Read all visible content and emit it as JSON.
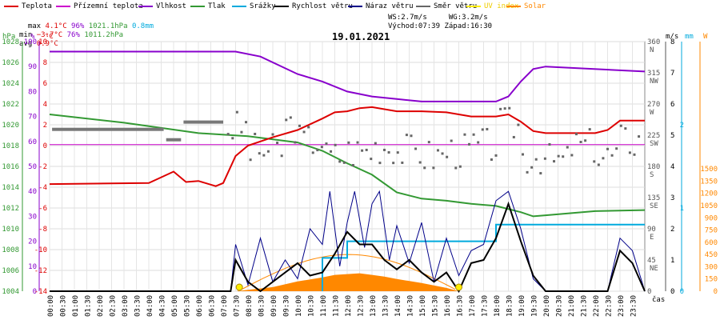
{
  "legend": [
    {
      "label": "Teplota",
      "color": "#dd0000"
    },
    {
      "label": "Přízemní teplota",
      "color": "#cc00cc"
    },
    {
      "label": "Vlhkost",
      "color": "#8800cc"
    },
    {
      "label": "Tlak",
      "color": "#339933"
    },
    {
      "label": "Srážky",
      "color": "#00aadd"
    },
    {
      "label": "Rychlost větru",
      "color": "#000000"
    },
    {
      "label": "Náraz větru",
      "color": "#000088"
    },
    {
      "label": "Směr větru",
      "color": "#666666"
    },
    {
      "label": "UV index",
      "color": "#ffee00"
    },
    {
      "label": "Solar",
      "color": "#ff8800"
    }
  ],
  "stats": {
    "max": {
      "label": "max",
      "temp": "4.1°C",
      "hum": "96%",
      "press": "1021.1hPa",
      "rain": "0.8mm"
    },
    "min": {
      "label": "min",
      "temp": "−3.7°C",
      "hum": "76%",
      "press": "1011.2hPa"
    },
    "avg": {
      "label": "avg",
      "temp": "0.9°C"
    }
  },
  "wind": {
    "ws": "WS:2.7m/s",
    "wg": "WG:3.2m/s",
    "sunrise": "Východ:07:39",
    "sunset": "Západ:16:30"
  },
  "date": "19.01.2021",
  "axes": {
    "hpa_unit": "hPa",
    "pct_unit": "%",
    "c_unit": "°C",
    "ms_unit": "m/s",
    "mm_unit": "mm",
    "w_unit": "W",
    "time_unit": "čas",
    "hpa_ticks": [
      "1028",
      "1026",
      "1024",
      "1022",
      "1020",
      "1018",
      "1016",
      "1014",
      "1012",
      "1010",
      "1008",
      "1006",
      "1004"
    ],
    "pct_ticks": [
      "100",
      "90",
      "80",
      "70",
      "60",
      "50",
      "40",
      "30",
      "20",
      "10",
      "0"
    ],
    "c_ticks": [
      "10",
      "8",
      "6",
      "4",
      "2",
      "0",
      "-2",
      "-4",
      "-6",
      "-8",
      "-10",
      "-12",
      "-14"
    ],
    "dir_ticks": [
      "360N",
      "315NW",
      "270W",
      "225SW",
      "180S",
      "135SE",
      "90E",
      "45NE",
      "0"
    ],
    "ms_ticks": [
      "8",
      "7",
      "6",
      "5",
      "4",
      "3",
      "2",
      "1",
      "0"
    ],
    "mm_ticks": [
      "2",
      "1",
      "0"
    ],
    "w_ticks": [
      "1500",
      "1350",
      "1200",
      "1050",
      "900",
      "750",
      "600",
      "450",
      "300",
      "150",
      "0"
    ],
    "time_ticks": [
      "00:00",
      "00:30",
      "01:00",
      "01:30",
      "02:00",
      "02:30",
      "03:00",
      "03:30",
      "04:00",
      "04:30",
      "05:00",
      "05:30",
      "06:00",
      "06:30",
      "07:00",
      "07:30",
      "08:00",
      "08:30",
      "09:00",
      "09:30",
      "10:00",
      "10:30",
      "11:00",
      "11:30",
      "12:00",
      "12:30",
      "13:00",
      "13:30",
      "14:00",
      "14:30",
      "15:00",
      "15:30",
      "16:00",
      "16:30",
      "17:00",
      "17:30",
      "18:00",
      "18:30",
      "19:00",
      "19:30",
      "20:00",
      "20:30",
      "21:00",
      "21:30",
      "22:00",
      "22:30",
      "23:00",
      "23:30"
    ]
  },
  "chart_data": {
    "type": "line",
    "title": "19.01.2021",
    "x_unit": "hours",
    "series": [
      {
        "name": "Teplota",
        "axis": "°C",
        "points": [
          [
            0,
            -3.7
          ],
          [
            4,
            -3.6
          ],
          [
            5,
            -2.5
          ],
          [
            5.5,
            -3.5
          ],
          [
            6,
            -3.4
          ],
          [
            6.7,
            -3.9
          ],
          [
            7,
            -3.6
          ],
          [
            7.5,
            -1
          ],
          [
            8,
            0
          ],
          [
            9,
            0.8
          ],
          [
            10,
            1.5
          ],
          [
            11,
            2.6
          ],
          [
            11.5,
            3.2
          ],
          [
            12,
            3.3
          ],
          [
            12.5,
            3.6
          ],
          [
            13,
            3.7
          ],
          [
            14,
            3.3
          ],
          [
            15,
            3.3
          ],
          [
            16,
            3.2
          ],
          [
            17,
            2.8
          ],
          [
            18,
            2.8
          ],
          [
            18.5,
            3
          ],
          [
            19,
            2.3
          ],
          [
            19.5,
            1.4
          ],
          [
            20,
            1.2
          ],
          [
            21,
            1.2
          ],
          [
            22,
            1.2
          ],
          [
            22.5,
            1.5
          ],
          [
            23,
            2.4
          ],
          [
            24,
            2.4
          ]
        ]
      },
      {
        "name": "Přízemní teplota",
        "axis": "°C",
        "points": [
          [
            0,
            0.1
          ],
          [
            24,
            0.1
          ]
        ]
      },
      {
        "name": "Vlhkost",
        "axis": "%",
        "points": [
          [
            0,
            96
          ],
          [
            7.5,
            96
          ],
          [
            8.5,
            94
          ],
          [
            10,
            87
          ],
          [
            11,
            84
          ],
          [
            12,
            80
          ],
          [
            13,
            78
          ],
          [
            14,
            77
          ],
          [
            15,
            76
          ],
          [
            16,
            76
          ],
          [
            17,
            76
          ],
          [
            18,
            76
          ],
          [
            18.5,
            78
          ],
          [
            19,
            84
          ],
          [
            19.5,
            89
          ],
          [
            20,
            90
          ],
          [
            24,
            88
          ]
        ]
      },
      {
        "name": "Tlak",
        "axis": "hPa",
        "points": [
          [
            0,
            1021
          ],
          [
            3,
            1020.2
          ],
          [
            6,
            1019.2
          ],
          [
            8,
            1018.9
          ],
          [
            10,
            1018.3
          ],
          [
            11,
            1017.5
          ],
          [
            12,
            1016.3
          ],
          [
            13,
            1015.2
          ],
          [
            14,
            1013.5
          ],
          [
            15,
            1012.9
          ],
          [
            16,
            1012.7
          ],
          [
            17,
            1012.4
          ],
          [
            18,
            1012.2
          ],
          [
            19,
            1011.6
          ],
          [
            19.5,
            1011.2
          ],
          [
            20,
            1011.3
          ],
          [
            22,
            1011.7
          ],
          [
            24,
            1011.8
          ]
        ]
      },
      {
        "name": "Srážky",
        "axis": "mm",
        "points": [
          [
            11,
            0
          ],
          [
            11,
            0.4
          ],
          [
            12,
            0.4
          ],
          [
            12,
            0.6
          ],
          [
            18,
            0.6
          ],
          [
            18,
            0.8
          ],
          [
            24,
            0.8
          ]
        ]
      },
      {
        "name": "Rychlost větru",
        "axis": "m/s",
        "points": [
          [
            0,
            0
          ],
          [
            7.3,
            0
          ],
          [
            7.5,
            1.0
          ],
          [
            8,
            0.3
          ],
          [
            8.5,
            0
          ],
          [
            9.5,
            0.6
          ],
          [
            10,
            0.9
          ],
          [
            10.5,
            0.5
          ],
          [
            11,
            0.6
          ],
          [
            11.5,
            1.2
          ],
          [
            12,
            1.9
          ],
          [
            12.5,
            1.5
          ],
          [
            13,
            1.5
          ],
          [
            13.5,
            1.0
          ],
          [
            14,
            0.7
          ],
          [
            14.5,
            1.0
          ],
          [
            15,
            0.6
          ],
          [
            15.5,
            0.3
          ],
          [
            16,
            0.6
          ],
          [
            16.5,
            0
          ],
          [
            17,
            0.9
          ],
          [
            17.5,
            1.0
          ],
          [
            18,
            1.7
          ],
          [
            18.5,
            2.8
          ],
          [
            19,
            1.6
          ],
          [
            19.5,
            0.5
          ],
          [
            20,
            0
          ],
          [
            22.5,
            0
          ],
          [
            23,
            1.3
          ],
          [
            23.5,
            0.9
          ],
          [
            24,
            0
          ]
        ]
      },
      {
        "name": "Náraz větru",
        "axis": "m/s",
        "points": [
          [
            0,
            0
          ],
          [
            7.3,
            0
          ],
          [
            7.5,
            1.5
          ],
          [
            8,
            0.2
          ],
          [
            8.5,
            1.7
          ],
          [
            9,
            0.3
          ],
          [
            9.5,
            1.0
          ],
          [
            10,
            0.4
          ],
          [
            10.5,
            2.0
          ],
          [
            11,
            1.5
          ],
          [
            11.3,
            3.2
          ],
          [
            11.7,
            0.8
          ],
          [
            12,
            2.2
          ],
          [
            12.3,
            3.2
          ],
          [
            12.7,
            1.4
          ],
          [
            13,
            2.8
          ],
          [
            13.3,
            3.2
          ],
          [
            13.7,
            1.0
          ],
          [
            14,
            2.1
          ],
          [
            14.5,
            0.9
          ],
          [
            15,
            2.2
          ],
          [
            15.5,
            0.3
          ],
          [
            16,
            1.7
          ],
          [
            16.5,
            0.5
          ],
          [
            17,
            1.3
          ],
          [
            17.5,
            1.5
          ],
          [
            18,
            2.9
          ],
          [
            18.5,
            3.2
          ],
          [
            19,
            2.0
          ],
          [
            19.5,
            0.4
          ],
          [
            20,
            0
          ],
          [
            22.5,
            0
          ],
          [
            23,
            1.7
          ],
          [
            23.5,
            1.3
          ],
          [
            24,
            0
          ]
        ]
      },
      {
        "name": "Solar",
        "axis": "W",
        "points": [
          [
            7.5,
            0
          ],
          [
            9,
            50
          ],
          [
            10,
            120
          ],
          [
            11,
            170
          ],
          [
            11.5,
            200
          ],
          [
            12,
            210
          ],
          [
            12.5,
            220
          ],
          [
            13,
            200
          ],
          [
            13.5,
            180
          ],
          [
            14,
            150
          ],
          [
            15,
            100
          ],
          [
            16,
            40
          ],
          [
            16.5,
            0
          ]
        ]
      }
    ]
  }
}
